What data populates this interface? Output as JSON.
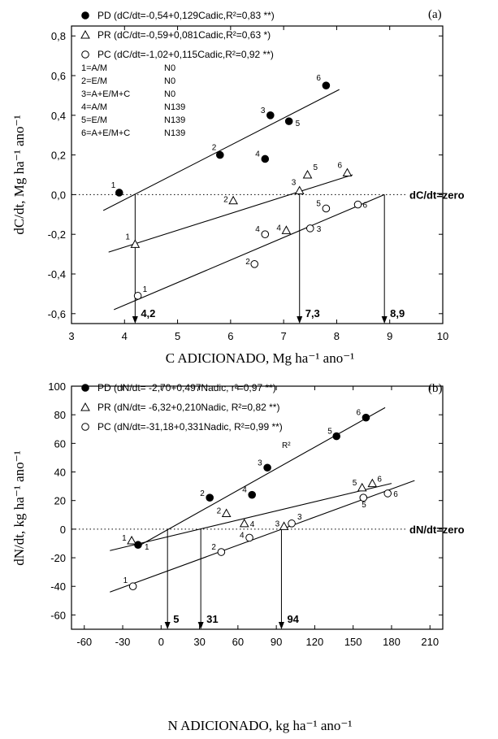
{
  "chart_data": [
    {
      "type": "scatter",
      "panel_label": "(a)",
      "xlabel": "C ADICIONADO, Mg ha⁻¹ ano⁻¹",
      "ylabel": "dC/dt, Mg ha⁻¹ ano⁻¹",
      "xlim": [
        3,
        10
      ],
      "ylim": [
        -0.65,
        0.85
      ],
      "x_ticks": [
        3,
        4,
        5,
        6,
        7,
        8,
        9,
        10
      ],
      "y_ticks": [
        -0.6,
        -0.4,
        -0.2,
        0.0,
        0.2,
        0.4,
        0.6,
        0.8
      ],
      "x_tick_labels": [
        "3",
        "4",
        "5",
        "6",
        "7",
        "8",
        "9",
        "10"
      ],
      "y_tick_labels": [
        "-0,6",
        "-0,4",
        "-0,2",
        "0,0",
        "0,2",
        "0,4",
        "0,6",
        "0,8"
      ],
      "zero_line_label": "dC/dt=zero",
      "legend": [
        {
          "marker": "filled-circle",
          "text": "PD (dC/dt=-0,54+0,129Cadic,R²=0,83 **)"
        },
        {
          "marker": "triangle",
          "text": "PR (dC/dt=-0,59+0,081Cadic,R²=0,63 *)"
        },
        {
          "marker": "open-circle",
          "text": "PC (dC/dt=-1,02+0,115Cadic,R²=0,92 **)"
        }
      ],
      "treatment_codes": [
        {
          "num": "1=A/M",
          "dose": "N0"
        },
        {
          "num": "2=E/M",
          "dose": "N0"
        },
        {
          "num": "3=A+E/M+C",
          "dose": "N0"
        },
        {
          "num": "4=A/M",
          "dose": "N139"
        },
        {
          "num": "5=E/M",
          "dose": "N139"
        },
        {
          "num": "6=A+E/M+C",
          "dose": "N139"
        }
      ],
      "series": [
        {
          "name": "PD",
          "marker": "filled-circle",
          "points": [
            {
              "x": 3.9,
              "y": 0.01,
              "label": "1"
            },
            {
              "x": 5.8,
              "y": 0.2,
              "label": "2"
            },
            {
              "x": 6.75,
              "y": 0.4,
              "label": "3"
            },
            {
              "x": 6.65,
              "y": 0.18,
              "label": "4"
            },
            {
              "x": 7.1,
              "y": 0.37,
              "label": "5"
            },
            {
              "x": 7.8,
              "y": 0.55,
              "label": "6"
            }
          ],
          "fit": {
            "x": [
              3.6,
              8.05
            ],
            "y": [
              -0.08,
              0.53
            ]
          }
        },
        {
          "name": "PR",
          "marker": "triangle",
          "points": [
            {
              "x": 4.2,
              "y": -0.25,
              "label": "1"
            },
            {
              "x": 6.05,
              "y": -0.03,
              "label": "2"
            },
            {
              "x": 7.3,
              "y": 0.02,
              "label": "3"
            },
            {
              "x": 7.05,
              "y": -0.18,
              "label": "4"
            },
            {
              "x": 7.45,
              "y": 0.1,
              "label": "5"
            },
            {
              "x": 8.2,
              "y": 0.11,
              "label": "6"
            }
          ],
          "fit": {
            "x": [
              3.7,
              8.3
            ],
            "y": [
              -0.29,
              0.1
            ]
          }
        },
        {
          "name": "PC",
          "marker": "open-circle",
          "points": [
            {
              "x": 4.25,
              "y": -0.51,
              "label": "1"
            },
            {
              "x": 6.45,
              "y": -0.35,
              "label": "2"
            },
            {
              "x": 7.5,
              "y": -0.17,
              "label": "3"
            },
            {
              "x": 6.65,
              "y": -0.2,
              "label": "4"
            },
            {
              "x": 7.8,
              "y": -0.07,
              "label": "5"
            },
            {
              "x": 8.4,
              "y": -0.05,
              "label": "6"
            }
          ],
          "fit": {
            "x": [
              3.8,
              8.9
            ],
            "y": [
              -0.58,
              0.0
            ]
          }
        }
      ],
      "zero_crossings": [
        {
          "x": 4.2,
          "label": "4,2"
        },
        {
          "x": 7.3,
          "label": "7,3"
        },
        {
          "x": 8.9,
          "label": "8,9"
        }
      ]
    },
    {
      "type": "scatter",
      "panel_label": "(b)",
      "xlabel": "N ADICIONADO, kg ha⁻¹ ano⁻¹",
      "ylabel": "dN/dt, kg ha⁻¹ ano⁻¹",
      "xlim": [
        -70,
        220
      ],
      "ylim": [
        -70,
        100
      ],
      "x_ticks": [
        -60,
        -30,
        0,
        30,
        60,
        90,
        120,
        150,
        180,
        210
      ],
      "y_ticks": [
        -60,
        -40,
        -20,
        0,
        20,
        40,
        60,
        80,
        100
      ],
      "x_tick_labels": [
        "-60",
        "-30",
        "0",
        "30",
        "60",
        "90",
        "120",
        "150",
        "180",
        "210"
      ],
      "y_tick_labels": [
        "-60",
        "-40",
        "-20",
        "0",
        "20",
        "40",
        "60",
        "80",
        "100"
      ],
      "zero_line_label": "dN/dt=zero",
      "legend": [
        {
          "marker": "filled-circle",
          "text": "PD (dN/dt= -2,70+0,497Nadic, r²=0,97 **)"
        },
        {
          "marker": "triangle",
          "text": "PR (dN/dt= -6,32+0,210Nadic, R²=0,82 **)"
        },
        {
          "marker": "open-circle",
          "text": "PC (dN/dt=-31,18+0,331Nadic, R²=0,99 **)"
        }
      ],
      "stray_text": "R²",
      "series": [
        {
          "name": "PD",
          "marker": "filled-circle",
          "points": [
            {
              "x": -18,
              "y": -11,
              "label": "1"
            },
            {
              "x": 38,
              "y": 22,
              "label": "2"
            },
            {
              "x": 83,
              "y": 43,
              "label": "3"
            },
            {
              "x": 71,
              "y": 24,
              "label": "4"
            },
            {
              "x": 137,
              "y": 65,
              "label": "5"
            },
            {
              "x": 160,
              "y": 78,
              "label": "6"
            }
          ],
          "fit": {
            "x": [
              -20,
              175
            ],
            "y": [
              -13,
              85
            ]
          }
        },
        {
          "name": "PR",
          "marker": "triangle",
          "points": [
            {
              "x": -23,
              "y": -8,
              "label": "1"
            },
            {
              "x": 51,
              "y": 11,
              "label": "2"
            },
            {
              "x": 96,
              "y": 2,
              "label": "3"
            },
            {
              "x": 65,
              "y": 4,
              "label": "4"
            },
            {
              "x": 157,
              "y": 29,
              "label": "5"
            },
            {
              "x": 165,
              "y": 32,
              "label": "6"
            }
          ],
          "fit": {
            "x": [
              -40,
              180
            ],
            "y": [
              -15,
              32
            ]
          }
        },
        {
          "name": "PC",
          "marker": "open-circle",
          "points": [
            {
              "x": -22,
              "y": -40,
              "label": "1"
            },
            {
              "x": 47,
              "y": -16,
              "label": "2"
            },
            {
              "x": 102,
              "y": 4,
              "label": "3"
            },
            {
              "x": 69,
              "y": -6,
              "label": "4"
            },
            {
              "x": 158,
              "y": 22,
              "label": "5"
            },
            {
              "x": 177,
              "y": 25,
              "label": "6"
            }
          ],
          "fit": {
            "x": [
              -40,
              198
            ],
            "y": [
              -44,
              34
            ]
          }
        }
      ],
      "zero_crossings": [
        {
          "x": 5,
          "label": "5"
        },
        {
          "x": 31,
          "label": "31"
        },
        {
          "x": 94,
          "label": "94"
        }
      ]
    }
  ]
}
